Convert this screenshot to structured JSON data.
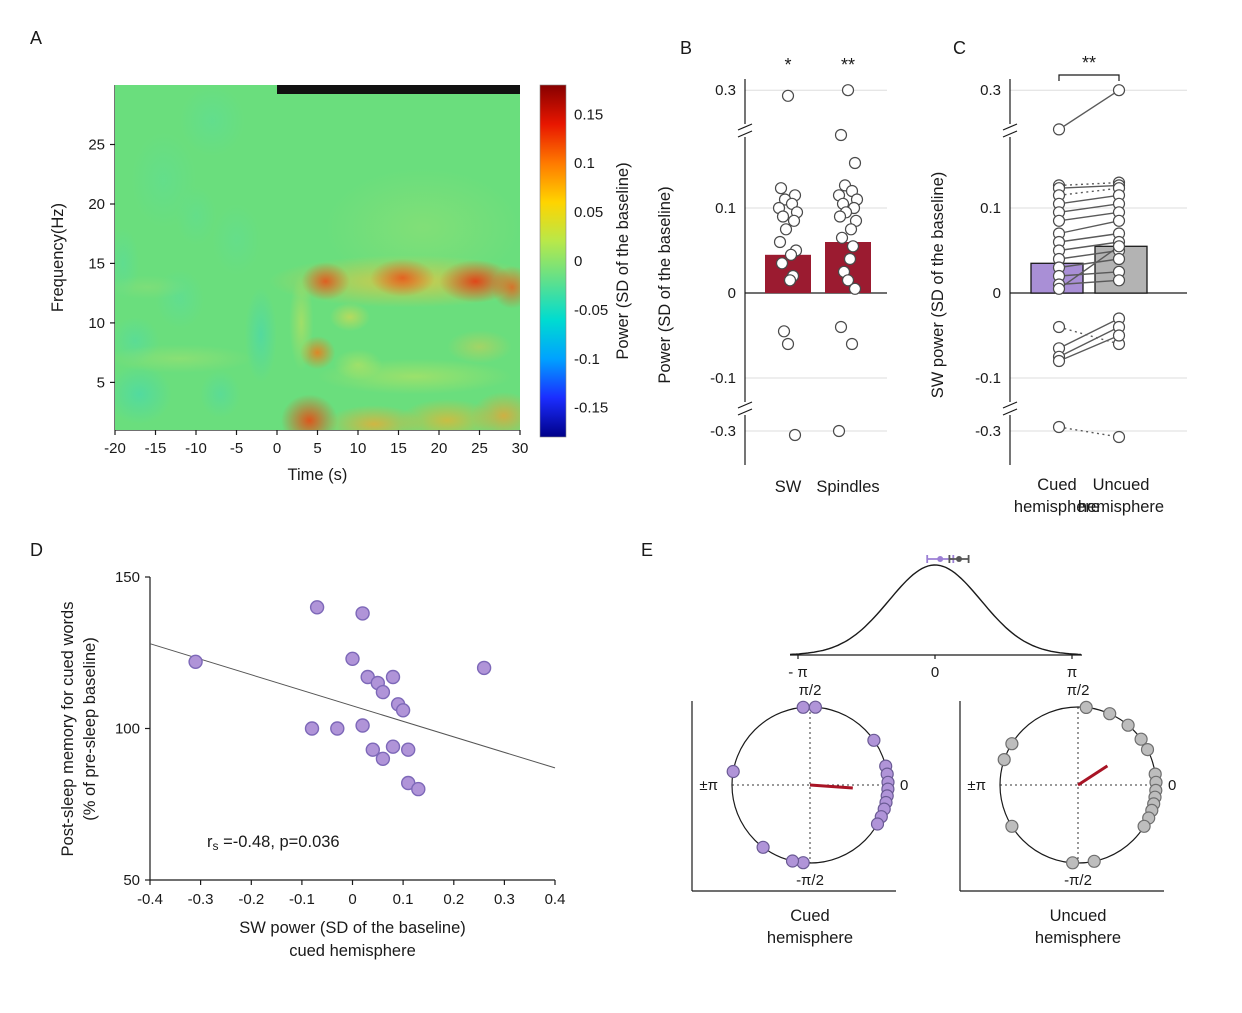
{
  "figure": {
    "background": "#ffffff",
    "panel_labels": {
      "a": "A",
      "b": "B",
      "c": "C",
      "d": "D",
      "e": "E"
    }
  },
  "chart_data": [
    {
      "id": "A",
      "type": "heatmap",
      "xlabel": "Time (s)",
      "ylabel": "Frequency(Hz)",
      "xlim": [
        -20,
        30
      ],
      "ylim": [
        1,
        30
      ],
      "xticks": [
        -20,
        -15,
        -10,
        -5,
        0,
        5,
        10,
        15,
        20,
        25,
        30
      ],
      "yticks": [
        5,
        10,
        15,
        20,
        25
      ],
      "colorbar": {
        "label": "Power (SD of the baseline)",
        "ticks": [
          0.15,
          0.1,
          0.05,
          0,
          -0.05,
          -0.1,
          -0.15
        ],
        "range": [
          -0.18,
          0.18
        ],
        "colors_top_to_bottom": [
          "#870000",
          "#e81600",
          "#ff7a00",
          "#ffd400",
          "#b8e84a",
          "#5fe08c",
          "#00dcd0",
          "#00a2ff",
          "#1b2dff",
          "#000088"
        ]
      },
      "base_color": "#6ade7d",
      "cue_bar": {
        "from_s": 0,
        "to_s": 30,
        "color": "#111111"
      },
      "blobs": [
        {
          "t": -17,
          "f": 4,
          "rt": 4,
          "rf": 2.5,
          "color": "#35d6c8",
          "alpha": 0.45
        },
        {
          "t": -17.5,
          "f": 8.5,
          "rt": 3,
          "rf": 2,
          "color": "#45dab8",
          "alpha": 0.4
        },
        {
          "t": -12,
          "f": 12,
          "rt": 3,
          "rf": 2.5,
          "color": "#50dcb0",
          "alpha": 0.35
        },
        {
          "t": -14,
          "f": 22,
          "rt": 4,
          "rf": 4,
          "color": "#55e0a8",
          "alpha": 0.3
        },
        {
          "t": -8,
          "f": 27,
          "rt": 4,
          "rf": 3,
          "color": "#50dcb0",
          "alpha": 0.3
        },
        {
          "t": -5,
          "f": 17,
          "rt": 3,
          "rf": 3,
          "color": "#55dfae",
          "alpha": 0.25
        },
        {
          "t": -2,
          "f": 9,
          "rt": 2,
          "rf": 4,
          "color": "#38d5c5",
          "alpha": 0.45
        },
        {
          "t": -7,
          "f": 4,
          "rt": 2.5,
          "rf": 2,
          "color": "#40d8c0",
          "alpha": 0.35
        },
        {
          "t": -19,
          "f": 15,
          "rt": 2,
          "rf": 3,
          "color": "#48dab8",
          "alpha": 0.3
        },
        {
          "t": -10,
          "f": 19,
          "rt": 2.5,
          "rf": 2.5,
          "color": "#52dead",
          "alpha": 0.25
        },
        {
          "t": -12,
          "f": 7,
          "rt": 9,
          "rf": 1.2,
          "color": "#b8e268",
          "alpha": 0.4
        },
        {
          "t": -16,
          "f": 13,
          "rt": 5,
          "rf": 1,
          "color": "#a8e070",
          "alpha": 0.3
        },
        {
          "t": 16,
          "f": 13.5,
          "rt": 17,
          "rf": 2.2,
          "color": "#f2c23a",
          "alpha": 0.75
        },
        {
          "t": 6,
          "f": 13.5,
          "rt": 3,
          "rf": 1.6,
          "color": "#ea4b16",
          "alpha": 0.85
        },
        {
          "t": 15.5,
          "f": 13.8,
          "rt": 4,
          "rf": 1.6,
          "color": "#ea4b16",
          "alpha": 0.85
        },
        {
          "t": 24.5,
          "f": 13.5,
          "rt": 4.5,
          "rf": 1.8,
          "color": "#e63812",
          "alpha": 0.9
        },
        {
          "t": 29,
          "f": 13,
          "rt": 2.5,
          "rf": 1.8,
          "color": "#ea5a1a",
          "alpha": 0.8
        },
        {
          "t": 5,
          "f": 7.5,
          "rt": 2.2,
          "rf": 1.4,
          "color": "#f07818",
          "alpha": 0.85
        },
        {
          "t": 9,
          "f": 10.5,
          "rt": 2.5,
          "rf": 1.2,
          "color": "#e8d84a",
          "alpha": 0.6
        },
        {
          "t": 4,
          "f": 1.8,
          "rt": 3.5,
          "rf": 2.2,
          "color": "#e84812",
          "alpha": 0.9
        },
        {
          "t": 12,
          "f": 1.5,
          "rt": 6,
          "rf": 1.6,
          "color": "#f2a830",
          "alpha": 0.75
        },
        {
          "t": 21,
          "f": 1.8,
          "rt": 6,
          "rf": 1.8,
          "color": "#f0b02c",
          "alpha": 0.7
        },
        {
          "t": 28,
          "f": 2.2,
          "rt": 4,
          "rf": 2,
          "color": "#f0a030",
          "alpha": 0.75
        },
        {
          "t": 17,
          "f": 5.5,
          "rt": 12,
          "rf": 1.5,
          "color": "#cce45a",
          "alpha": 0.5
        },
        {
          "t": 25,
          "f": 8,
          "rt": 4,
          "rf": 1.4,
          "color": "#e8c84a",
          "alpha": 0.45
        },
        {
          "t": 10,
          "f": 6.5,
          "rt": 3,
          "rf": 1.3,
          "color": "#d8e455",
          "alpha": 0.45
        },
        {
          "t": 18,
          "f": 18,
          "rt": 12,
          "rf": 5,
          "color": "#b6e26a",
          "alpha": 0.3
        },
        {
          "t": 3,
          "f": 10,
          "rt": 1.5,
          "rf": 4,
          "color": "#e0e050",
          "alpha": 0.45
        }
      ]
    },
    {
      "id": "B",
      "type": "bar",
      "ylabel": "Power (SD of the baseline)",
      "yticks": [
        0.3,
        0.1,
        0,
        -0.1,
        -0.3
      ],
      "categories": [
        "SW",
        "Spindles"
      ],
      "bar_values": [
        0.045,
        0.06
      ],
      "bar_color": "#9b1b30",
      "significance": [
        "*",
        "**"
      ],
      "points_sw": [
        0.29,
        0.125,
        0.115,
        0.11,
        0.105,
        0.1,
        0.095,
        0.09,
        0.085,
        0.075,
        0.06,
        0.05,
        0.045,
        0.035,
        0.02,
        0.015,
        -0.045,
        -0.06,
        -0.32
      ],
      "points_spindles": [
        0.3,
        0.22,
        0.17,
        0.13,
        0.12,
        0.115,
        0.11,
        0.105,
        0.1,
        0.095,
        0.09,
        0.085,
        0.075,
        0.065,
        0.055,
        0.04,
        0.025,
        0.015,
        0.005,
        -0.04,
        -0.06,
        -0.3
      ]
    },
    {
      "id": "C",
      "type": "paired-bar",
      "ylabel": "SW power (SD of the baseline)",
      "yticks": [
        0.3,
        0.1,
        0,
        -0.1,
        -0.3
      ],
      "categories_line1": [
        "Cued",
        "Uncued"
      ],
      "categories_line2": [
        "hemisphere",
        "hemisphere"
      ],
      "bar_values": [
        0.035,
        0.055
      ],
      "bar_colors": [
        "#a98fd6",
        "#b3b3b3"
      ],
      "significance": "**",
      "pairs": [
        {
          "cued": 0.23,
          "uncued": 0.3,
          "line": "solid"
        },
        {
          "cued": 0.13,
          "uncued": 0.135,
          "line": "dotted"
        },
        {
          "cued": 0.125,
          "uncued": 0.13,
          "line": "solid"
        },
        {
          "cued": 0.115,
          "uncued": 0.125,
          "line": "dotted"
        },
        {
          "cued": 0.105,
          "uncued": 0.115,
          "line": "solid"
        },
        {
          "cued": 0.095,
          "uncued": 0.105,
          "line": "solid"
        },
        {
          "cued": 0.085,
          "uncued": 0.095,
          "line": "solid"
        },
        {
          "cued": 0.07,
          "uncued": 0.085,
          "line": "solid"
        },
        {
          "cued": 0.06,
          "uncued": 0.07,
          "line": "solid"
        },
        {
          "cued": 0.05,
          "uncued": 0.06,
          "line": "solid"
        },
        {
          "cued": 0.04,
          "uncued": 0.05,
          "line": "solid"
        },
        {
          "cued": 0.03,
          "uncued": 0.04,
          "line": "solid"
        },
        {
          "cued": 0.02,
          "uncued": 0.025,
          "line": "solid"
        },
        {
          "cued": 0.01,
          "uncued": 0.015,
          "line": "solid"
        },
        {
          "cued": 0.005,
          "uncued": 0.055,
          "line": "solid"
        },
        {
          "cued": -0.04,
          "uncued": -0.06,
          "line": "dotted"
        },
        {
          "cued": -0.065,
          "uncued": -0.03,
          "line": "solid"
        },
        {
          "cued": -0.075,
          "uncued": -0.04,
          "line": "solid"
        },
        {
          "cued": -0.08,
          "uncued": -0.05,
          "line": "solid"
        },
        {
          "cued": -0.28,
          "uncued": -0.33,
          "line": "dotted"
        }
      ]
    },
    {
      "id": "D",
      "type": "scatter",
      "xlabel_lines": [
        "SW power (SD of the baseline)",
        "cued hemisphere"
      ],
      "ylabel_lines": [
        "Post-sleep memory for cued words",
        "(% of pre-sleep baseline)"
      ],
      "xlim": [
        -0.4,
        0.4
      ],
      "ylim": [
        50,
        150
      ],
      "xticks": [
        -0.4,
        -0.3,
        -0.2,
        -0.1,
        0,
        0.1,
        0.2,
        0.3,
        0.4
      ],
      "yticks": [
        50,
        100,
        150
      ],
      "point_fill": "#b094d8",
      "point_stroke": "#7d68b8",
      "regression_line": {
        "x1": -0.4,
        "y1": 128,
        "x2": 0.4,
        "y2": 87
      },
      "annotation": {
        "base": "r",
        "sub": "s",
        "rest": " =-0.48, p=0.036"
      },
      "points": [
        [
          -0.31,
          122
        ],
        [
          -0.07,
          140
        ],
        [
          0.02,
          138
        ],
        [
          0.0,
          123
        ],
        [
          0.03,
          117
        ],
        [
          0.05,
          115
        ],
        [
          0.08,
          117
        ],
        [
          0.06,
          112
        ],
        [
          0.09,
          108
        ],
        [
          0.1,
          106
        ],
        [
          -0.08,
          100
        ],
        [
          -0.03,
          100
        ],
        [
          0.02,
          101
        ],
        [
          0.04,
          93
        ],
        [
          0.06,
          90
        ],
        [
          0.08,
          94
        ],
        [
          0.11,
          93
        ],
        [
          0.11,
          82
        ],
        [
          0.13,
          80
        ],
        [
          0.26,
          120
        ]
      ]
    },
    {
      "id": "E",
      "type": "circular-phase",
      "distribution": {
        "tick_labels": [
          "- π",
          "0",
          "π"
        ],
        "markers": [
          {
            "color": "#9b7fd4",
            "offset": 0.12,
            "halfwidth": 0.3
          },
          {
            "color": "#555555",
            "offset": 0.55,
            "halfwidth": 0.22
          }
        ]
      },
      "axis_labels": {
        "top": "π/2",
        "bottom": "-π/2",
        "left": "±π",
        "right": "0"
      },
      "circles": [
        {
          "name_lines": [
            "Cued",
            "hemisphere"
          ],
          "dot_fill": "#b094d8",
          "dot_stroke": "#6a5a94",
          "mean_angle_deg": -4,
          "mean_length": 0.55,
          "mean_color": "#a81425",
          "angles_deg": [
            95,
            86,
            35,
            14,
            8,
            2,
            -3,
            -8,
            -13,
            -18,
            -24,
            -30,
            -95,
            -103,
            -127,
            170
          ]
        },
        {
          "name_lines": [
            "Uncued",
            "hemisphere"
          ],
          "dot_fill": "#bdbdbd",
          "dot_stroke": "#6e6e6e",
          "mean_angle_deg": 33,
          "mean_length": 0.45,
          "mean_color": "#a81425",
          "angles_deg": [
            84,
            66,
            50,
            36,
            27,
            148,
            161,
            8,
            2,
            -4,
            -9,
            -14,
            -19,
            -25,
            -32,
            -78,
            -94,
            -148
          ]
        }
      ]
    }
  ]
}
